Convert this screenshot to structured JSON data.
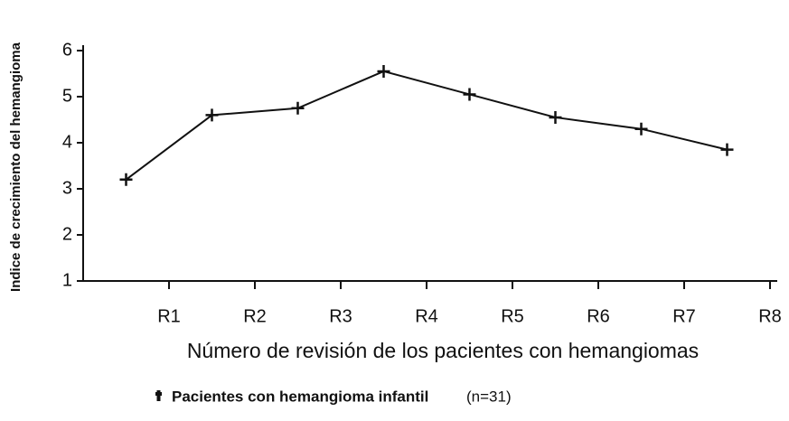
{
  "chart_data": {
    "type": "line",
    "y_label": "Indice de crecimiento del hemangioma",
    "x_label": "Número de revisión de los pacientes con hemangiomas",
    "x": [
      0.5,
      1.5,
      2.5,
      3.5,
      4.5,
      5.5,
      6.5,
      7.5
    ],
    "series": [
      {
        "name": "Pacientes con hemangioma infantil",
        "color": "#111111",
        "values": [
          3.2,
          4.6,
          4.75,
          5.55,
          5.05,
          4.55,
          4.3,
          3.85
        ]
      }
    ],
    "legend_note": "(n=31)",
    "xlim": [
      0,
      8
    ],
    "xticks": [
      {
        "value": 1,
        "label": "R1"
      },
      {
        "value": 2,
        "label": "R2"
      },
      {
        "value": 3,
        "label": "R3"
      },
      {
        "value": 4,
        "label": "R4"
      },
      {
        "value": 5,
        "label": "R5"
      },
      {
        "value": 6,
        "label": "R6"
      },
      {
        "value": 7,
        "label": "R7"
      },
      {
        "value": 8,
        "label": "R8"
      }
    ],
    "ylim": [
      1,
      6
    ],
    "yticks": [
      1,
      2,
      3,
      4,
      5,
      6
    ],
    "grid": false
  }
}
